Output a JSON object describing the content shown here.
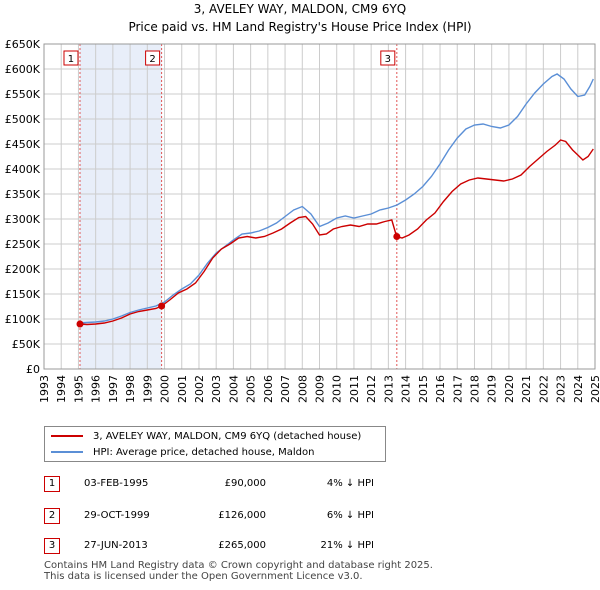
{
  "title": "3, AVELEY WAY, MALDON, CM9 6YQ",
  "subtitle": "Price paid vs. HM Land Registry's House Price Index (HPI)",
  "colors": {
    "property": "#cc0000",
    "hpi": "#5b8fd6",
    "shade": "#e8eef9",
    "grid": "#cccccc"
  },
  "chart_data": {
    "type": "line",
    "xlim": [
      1993,
      2025
    ],
    "ylim": [
      0,
      650000
    ],
    "y_ticks": [
      0,
      50000,
      100000,
      150000,
      200000,
      250000,
      300000,
      350000,
      400000,
      450000,
      500000,
      550000,
      600000,
      650000
    ],
    "y_tick_labels": [
      "£0",
      "£50K",
      "£100K",
      "£150K",
      "£200K",
      "£250K",
      "£300K",
      "£350K",
      "£400K",
      "£450K",
      "£500K",
      "£550K",
      "£600K",
      "£650K"
    ],
    "x_ticks": [
      1993,
      1994,
      1995,
      1996,
      1997,
      1998,
      1999,
      2000,
      2001,
      2002,
      2003,
      2004,
      2005,
      2006,
      2007,
      2008,
      2009,
      2010,
      2011,
      2012,
      2013,
      2014,
      2015,
      2016,
      2017,
      2018,
      2019,
      2020,
      2021,
      2022,
      2023,
      2024,
      2025
    ],
    "shaded_ranges": [
      [
        1995.09,
        1999.83
      ]
    ],
    "series": [
      {
        "name": "3, AVELEY WAY, MALDON, CM9 6YQ (detached house)",
        "color": "#cc0000",
        "points": [
          [
            1995.09,
            90000
          ],
          [
            1995.5,
            89000
          ],
          [
            1996,
            90000
          ],
          [
            1996.5,
            92000
          ],
          [
            1997,
            96000
          ],
          [
            1997.5,
            102000
          ],
          [
            1998,
            110000
          ],
          [
            1998.5,
            115000
          ],
          [
            1999,
            118000
          ],
          [
            1999.5,
            121000
          ],
          [
            1999.83,
            126000
          ],
          [
            2000.3,
            138000
          ],
          [
            2000.8,
            152000
          ],
          [
            2001.3,
            160000
          ],
          [
            2001.8,
            172000
          ],
          [
            2002.3,
            195000
          ],
          [
            2002.8,
            222000
          ],
          [
            2003.3,
            240000
          ],
          [
            2003.8,
            250000
          ],
          [
            2004.3,
            262000
          ],
          [
            2004.8,
            265000
          ],
          [
            2005.3,
            262000
          ],
          [
            2005.8,
            265000
          ],
          [
            2006.3,
            272000
          ],
          [
            2006.8,
            280000
          ],
          [
            2007.3,
            292000
          ],
          [
            2007.8,
            303000
          ],
          [
            2008.2,
            305000
          ],
          [
            2008.6,
            290000
          ],
          [
            2009.0,
            268000
          ],
          [
            2009.4,
            270000
          ],
          [
            2009.8,
            280000
          ],
          [
            2010.3,
            285000
          ],
          [
            2010.8,
            288000
          ],
          [
            2011.3,
            285000
          ],
          [
            2011.8,
            290000
          ],
          [
            2012.3,
            290000
          ],
          [
            2012.8,
            295000
          ],
          [
            2013.2,
            298000
          ],
          [
            2013.48,
            265000
          ],
          [
            2013.8,
            262000
          ],
          [
            2014.2,
            268000
          ],
          [
            2014.7,
            280000
          ],
          [
            2015.2,
            298000
          ],
          [
            2015.7,
            312000
          ],
          [
            2016.2,
            335000
          ],
          [
            2016.7,
            355000
          ],
          [
            2017.2,
            370000
          ],
          [
            2017.7,
            378000
          ],
          [
            2018.2,
            382000
          ],
          [
            2018.7,
            380000
          ],
          [
            2019.2,
            378000
          ],
          [
            2019.7,
            376000
          ],
          [
            2020.2,
            380000
          ],
          [
            2020.7,
            388000
          ],
          [
            2021.2,
            405000
          ],
          [
            2021.7,
            420000
          ],
          [
            2022.2,
            435000
          ],
          [
            2022.7,
            448000
          ],
          [
            2023.0,
            458000
          ],
          [
            2023.3,
            455000
          ],
          [
            2023.7,
            438000
          ],
          [
            2024.0,
            428000
          ],
          [
            2024.3,
            418000
          ],
          [
            2024.6,
            425000
          ],
          [
            2024.9,
            440000
          ]
        ]
      },
      {
        "name": "HPI: Average price, detached house, Maldon",
        "color": "#5b8fd6",
        "points": [
          [
            1995.0,
            92000
          ],
          [
            1995.5,
            93000
          ],
          [
            1996,
            94000
          ],
          [
            1996.5,
            96000
          ],
          [
            1997,
            100000
          ],
          [
            1997.5,
            106000
          ],
          [
            1998,
            113000
          ],
          [
            1998.5,
            118000
          ],
          [
            1999,
            122000
          ],
          [
            1999.5,
            126000
          ],
          [
            2000,
            134000
          ],
          [
            2000.5,
            148000
          ],
          [
            2001,
            160000
          ],
          [
            2001.5,
            170000
          ],
          [
            2002,
            188000
          ],
          [
            2002.5,
            212000
          ],
          [
            2003,
            232000
          ],
          [
            2003.5,
            245000
          ],
          [
            2004,
            258000
          ],
          [
            2004.5,
            270000
          ],
          [
            2005,
            272000
          ],
          [
            2005.5,
            276000
          ],
          [
            2006,
            283000
          ],
          [
            2006.5,
            292000
          ],
          [
            2007,
            305000
          ],
          [
            2007.5,
            318000
          ],
          [
            2008,
            325000
          ],
          [
            2008.5,
            310000
          ],
          [
            2009,
            285000
          ],
          [
            2009.5,
            292000
          ],
          [
            2010,
            302000
          ],
          [
            2010.5,
            306000
          ],
          [
            2011,
            302000
          ],
          [
            2011.5,
            306000
          ],
          [
            2012,
            310000
          ],
          [
            2012.5,
            318000
          ],
          [
            2013,
            322000
          ],
          [
            2013.5,
            328000
          ],
          [
            2014,
            338000
          ],
          [
            2014.5,
            350000
          ],
          [
            2015,
            365000
          ],
          [
            2015.5,
            385000
          ],
          [
            2016,
            410000
          ],
          [
            2016.5,
            438000
          ],
          [
            2017,
            462000
          ],
          [
            2017.5,
            480000
          ],
          [
            2018,
            488000
          ],
          [
            2018.5,
            490000
          ],
          [
            2019,
            485000
          ],
          [
            2019.5,
            482000
          ],
          [
            2020,
            488000
          ],
          [
            2020.5,
            505000
          ],
          [
            2021,
            530000
          ],
          [
            2021.5,
            552000
          ],
          [
            2022,
            570000
          ],
          [
            2022.5,
            585000
          ],
          [
            2022.8,
            590000
          ],
          [
            2023.2,
            580000
          ],
          [
            2023.6,
            560000
          ],
          [
            2024.0,
            545000
          ],
          [
            2024.4,
            548000
          ],
          [
            2024.7,
            565000
          ],
          [
            2024.9,
            580000
          ]
        ]
      }
    ],
    "sales": [
      {
        "id": "1",
        "x": 1995.09,
        "price": 90000
      },
      {
        "id": "2",
        "x": 1999.83,
        "price": 126000
      },
      {
        "id": "3",
        "x": 2013.49,
        "price": 265000
      }
    ]
  },
  "legend": {
    "property_label": "3, AVELEY WAY, MALDON, CM9 6YQ (detached house)",
    "hpi_label": "HPI: Average price, detached house, Maldon"
  },
  "sales_table": [
    {
      "num": "1",
      "date": "03-FEB-1995",
      "price": "£90,000",
      "hpi": "4% ↓ HPI"
    },
    {
      "num": "2",
      "date": "29-OCT-1999",
      "price": "£126,000",
      "hpi": "6% ↓ HPI"
    },
    {
      "num": "3",
      "date": "27-JUN-2013",
      "price": "£265,000",
      "hpi": "21% ↓ HPI"
    }
  ],
  "footer": {
    "line1": "Contains HM Land Registry data © Crown copyright and database right 2025.",
    "line2": "This data is licensed under the Open Government Licence v3.0."
  }
}
